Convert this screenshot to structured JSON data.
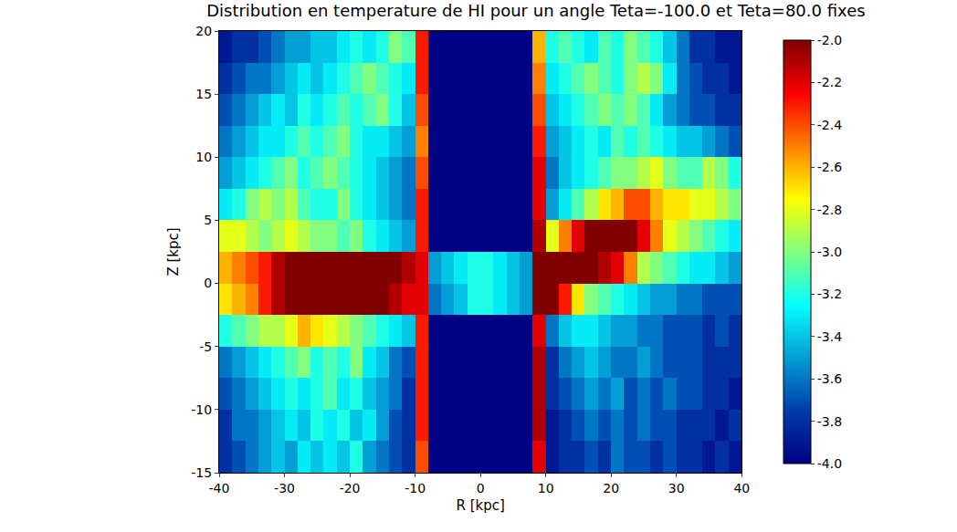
{
  "chart_data": {
    "type": "heatmap",
    "title": "Distribution en temperature de HI pour un angle Teta=-100.0 et Teta=80.0 fixes",
    "x_label": "R [kpc]",
    "y_label": "Z [kpc]",
    "color": "Jet",
    "xlim": [
      -40,
      40
    ],
    "ylim": [
      -15,
      20
    ],
    "xticks": [
      -40,
      -30,
      -20,
      -10,
      0,
      10,
      20,
      30,
      40
    ],
    "yticks": [
      -15,
      -10,
      -5,
      0,
      5,
      10,
      15,
      20
    ],
    "x": [
      -39,
      -37,
      -35,
      -33,
      -31,
      -29,
      -27,
      -25,
      -23,
      -21,
      -19,
      -17,
      -15,
      -13,
      -11,
      -9,
      -7,
      -5,
      -3,
      -1,
      1,
      3,
      5,
      7,
      9,
      11,
      13,
      15,
      17,
      19,
      21,
      23,
      25,
      27,
      29,
      31,
      33,
      35,
      37,
      39
    ],
    "y": [
      -13.75,
      -11.25,
      -8.75,
      -6.25,
      -3.75,
      -1.25,
      1.25,
      3.75,
      6.25,
      8.75,
      11.25,
      13.75,
      16.25,
      18.75
    ],
    "cells": [
      [
        -3.8,
        -3.7,
        -3.6,
        -3.5,
        -3.4,
        -3.5,
        -3.3,
        -3.4,
        -3.3,
        -3.4,
        -3.2,
        -3.5,
        -3.6,
        -3.7,
        -3.8,
        -2.4,
        -4,
        -4,
        -4,
        -4,
        -4,
        -4,
        -4,
        -4,
        -2.2,
        -3.9,
        -3.8,
        -3.8,
        -3.7,
        -3.8,
        -3.6,
        -3.7,
        -3.7,
        -3.8,
        -3.7,
        -3.8,
        -3.8,
        -3.9,
        -3.8,
        -3.9
      ],
      [
        -3.8,
        -3.6,
        -3.6,
        -3.5,
        -3.4,
        -3.3,
        -3.4,
        -3.2,
        -3.3,
        -3.2,
        -3.4,
        -3.3,
        -3.5,
        -3.7,
        -3.8,
        -2.3,
        -4,
        -4,
        -4,
        -4,
        -4,
        -4,
        -4,
        -4,
        -2.1,
        -3.9,
        -3.8,
        -3.7,
        -3.6,
        -3.7,
        -3.6,
        -3.7,
        -3.6,
        -3.7,
        -3.7,
        -3.8,
        -3.8,
        -3.8,
        -3.9,
        -3.8
      ],
      [
        -3.7,
        -3.6,
        -3.5,
        -3.4,
        -3.3,
        -3.2,
        -3.3,
        -3.2,
        -3.1,
        -3.3,
        -3.2,
        -3.4,
        -3.5,
        -3.6,
        -3.8,
        -2.3,
        -4,
        -4,
        -4,
        -4,
        -4,
        -4,
        -4,
        -4,
        -2.1,
        -3.8,
        -3.7,
        -3.6,
        -3.5,
        -3.6,
        -3.5,
        -3.7,
        -3.6,
        -3.7,
        -3.6,
        -3.7,
        -3.7,
        -3.8,
        -3.8,
        -3.9
      ],
      [
        -3.6,
        -3.5,
        -3.4,
        -3.3,
        -3.2,
        -3.1,
        -3.0,
        -3.2,
        -3.1,
        -3.2,
        -3.0,
        -3.3,
        -3.4,
        -3.6,
        -3.7,
        -2.3,
        -4,
        -4,
        -4,
        -4,
        -4,
        -4,
        -4,
        -4,
        -2.1,
        -3.8,
        -3.6,
        -3.5,
        -3.4,
        -3.5,
        -3.6,
        -3.6,
        -3.5,
        -3.6,
        -3.7,
        -3.7,
        -3.7,
        -3.8,
        -3.8,
        -3.8
      ],
      [
        -3.2,
        -3.1,
        -3.0,
        -2.9,
        -2.9,
        -2.8,
        -2.6,
        -2.7,
        -2.8,
        -2.9,
        -3.0,
        -3.1,
        -3.2,
        -3.3,
        -3.4,
        -2.3,
        -4,
        -4,
        -4,
        -4,
        -4,
        -4,
        -4,
        -4,
        -2.2,
        -3.6,
        -3.4,
        -3.3,
        -3.3,
        -3.4,
        -3.5,
        -3.5,
        -3.6,
        -3.6,
        -3.7,
        -3.7,
        -3.7,
        -3.8,
        -3.7,
        -3.8
      ],
      [
        -2.7,
        -2.6,
        -2.5,
        -2.3,
        -2.1,
        -2.0,
        -2.0,
        -2.0,
        -2.0,
        -2.0,
        -2.0,
        -2.0,
        -2.0,
        -2.1,
        -2.2,
        -2.2,
        -3.6,
        -3.5,
        -3.4,
        -3.2,
        -3.2,
        -3.3,
        -3.4,
        -3.5,
        -2.0,
        -2.0,
        -2.3,
        -2.7,
        -3.0,
        -3.1,
        -3.2,
        -3.3,
        -3.4,
        -3.5,
        -3.5,
        -3.6,
        -3.6,
        -3.7,
        -3.7,
        -3.7
      ],
      [
        -2.6,
        -2.5,
        -2.4,
        -2.3,
        -2.1,
        -2.0,
        -2.0,
        -2.0,
        -2.0,
        -2.0,
        -2.0,
        -2.0,
        -2.0,
        -2.0,
        -2.1,
        -2.2,
        -3.5,
        -3.4,
        -3.3,
        -3.2,
        -3.2,
        -3.3,
        -3.4,
        -3.5,
        -2.0,
        -2.0,
        -2.0,
        -2.0,
        -2.0,
        -2.1,
        -2.2,
        -2.5,
        -2.9,
        -3.0,
        -3.1,
        -3.2,
        -3.3,
        -3.3,
        -3.4,
        -3.5
      ],
      [
        -2.8,
        -2.8,
        -2.9,
        -3.0,
        -2.9,
        -2.8,
        -2.9,
        -3.0,
        -3.0,
        -3.1,
        -3.0,
        -3.2,
        -3.3,
        -3.4,
        -3.5,
        -2.3,
        -4,
        -4,
        -4,
        -4,
        -4,
        -4,
        -4,
        -4,
        -2.1,
        -2.8,
        -2.5,
        -2.2,
        -2.0,
        -2.0,
        -2.0,
        -2.0,
        -2.2,
        -2.5,
        -2.8,
        -2.9,
        -3.0,
        -3.1,
        -3.2,
        -3.3
      ],
      [
        -3.3,
        -3.2,
        -3.0,
        -2.9,
        -3.0,
        -2.9,
        -3.1,
        -3.2,
        -3.2,
        -3.0,
        -3.2,
        -3.3,
        -3.4,
        -3.5,
        -3.6,
        -2.3,
        -4,
        -4,
        -4,
        -4,
        -4,
        -4,
        -4,
        -4,
        -2.2,
        -3.5,
        -3.3,
        -3.1,
        -2.9,
        -2.7,
        -2.6,
        -2.4,
        -2.4,
        -2.6,
        -2.7,
        -2.7,
        -2.8,
        -2.8,
        -2.9,
        -3.0
      ],
      [
        -3.5,
        -3.4,
        -3.3,
        -3.2,
        -3.1,
        -3.0,
        -3.2,
        -3.1,
        -3.0,
        -3.1,
        -3.2,
        -3.3,
        -3.4,
        -3.5,
        -3.6,
        -2.4,
        -4,
        -4,
        -4,
        -4,
        -4,
        -4,
        -4,
        -4,
        -2.2,
        -3.6,
        -3.4,
        -3.3,
        -3.2,
        -3.1,
        -3.0,
        -3.0,
        -2.9,
        -2.8,
        -3.0,
        -3.1,
        -3.1,
        -2.9,
        -3.0,
        -3.2
      ],
      [
        -3.6,
        -3.5,
        -3.4,
        -3.3,
        -3.3,
        -3.2,
        -3.1,
        -3.2,
        -3.1,
        -3.0,
        -3.2,
        -3.3,
        -3.3,
        -3.4,
        -3.5,
        -2.5,
        -4,
        -4,
        -4,
        -4,
        -4,
        -4,
        -4,
        -4,
        -2.3,
        -3.5,
        -3.4,
        -3.3,
        -3.2,
        -3.3,
        -3.1,
        -3.2,
        -3.1,
        -3.2,
        -3.3,
        -3.4,
        -3.4,
        -3.5,
        -3.6,
        -3.7
      ],
      [
        -3.7,
        -3.6,
        -3.5,
        -3.4,
        -3.3,
        -3.4,
        -3.2,
        -3.3,
        -3.2,
        -3.1,
        -3.2,
        -3.1,
        -3.0,
        -3.2,
        -3.4,
        -2.4,
        -4,
        -4,
        -4,
        -4,
        -4,
        -4,
        -4,
        -4,
        -2.4,
        -3.4,
        -3.3,
        -3.2,
        -3.1,
        -3.0,
        -3.1,
        -3.0,
        -3.1,
        -3.3,
        -3.5,
        -3.6,
        -3.7,
        -3.7,
        -3.8,
        -3.8
      ],
      [
        -3.8,
        -3.7,
        -3.6,
        -3.6,
        -3.5,
        -3.4,
        -3.3,
        -3.4,
        -3.3,
        -3.2,
        -3.1,
        -3.0,
        -3.1,
        -3.2,
        -3.3,
        -2.3,
        -4,
        -4,
        -4,
        -4,
        -4,
        -4,
        -4,
        -4,
        -2.5,
        -3.3,
        -3.2,
        -3.1,
        -3.0,
        -3.1,
        -3.2,
        -3.0,
        -2.9,
        -3.0,
        -3.3,
        -3.6,
        -3.7,
        -3.8,
        -3.8,
        -3.9
      ],
      [
        -3.9,
        -3.8,
        -3.8,
        -3.7,
        -3.6,
        -3.5,
        -3.5,
        -3.4,
        -3.4,
        -3.3,
        -3.2,
        -3.3,
        -3.2,
        -3.0,
        -3.1,
        -2.3,
        -4,
        -4,
        -4,
        -4,
        -4,
        -4,
        -4,
        -4,
        -2.6,
        -3.2,
        -3.1,
        -3.2,
        -3.3,
        -3.1,
        -3.2,
        -3.0,
        -3.1,
        -3.2,
        -3.4,
        -3.6,
        -3.8,
        -3.8,
        -3.9,
        -3.9
      ]
    ],
    "colorbar_range": [
      -4,
      -2
    ],
    "colorbar_ticks": [
      {
        "value": -2,
        "label": "-2.0"
      },
      -2.2,
      -2.4,
      -2.6,
      -2.8,
      {
        "value": -3,
        "label": "-3.0"
      },
      -3.2,
      -3.4,
      -3.6,
      -3.8,
      {
        "value": -4,
        "label": "-4.0"
      }
    ]
  }
}
